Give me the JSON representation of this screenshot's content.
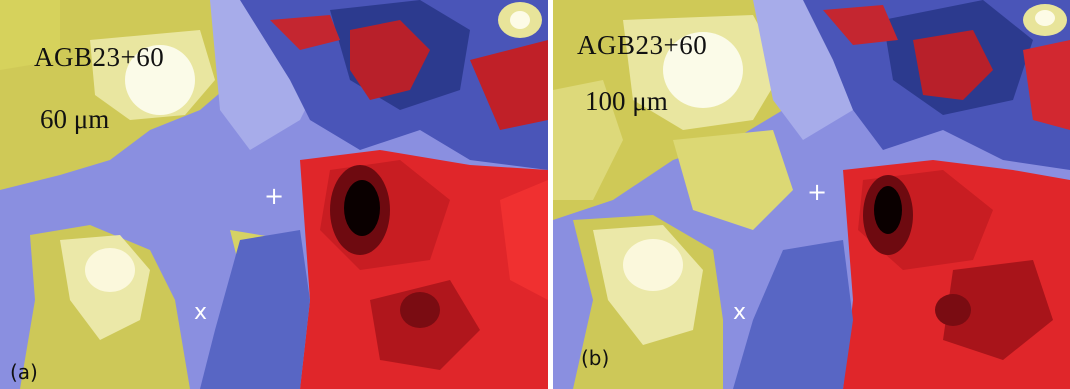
{
  "panels": [
    {
      "object": "AGB23+60",
      "band": "60 μm",
      "tag": "(a)",
      "markers": {
        "plus": "+",
        "cross": "x"
      }
    },
    {
      "object": "AGB23+60",
      "band": "100 μm",
      "tag": "(b)",
      "markers": {
        "plus": "+",
        "cross": "x"
      }
    }
  ],
  "colors": {
    "background_blue": "#8a8fe0",
    "deep_blue": "#2c3a8e",
    "yellow": "#d8d35a",
    "pale_yellow": "#f2efb5",
    "red": "#e0262a",
    "dark_red": "#6e0a10",
    "black": "#0a0000"
  }
}
